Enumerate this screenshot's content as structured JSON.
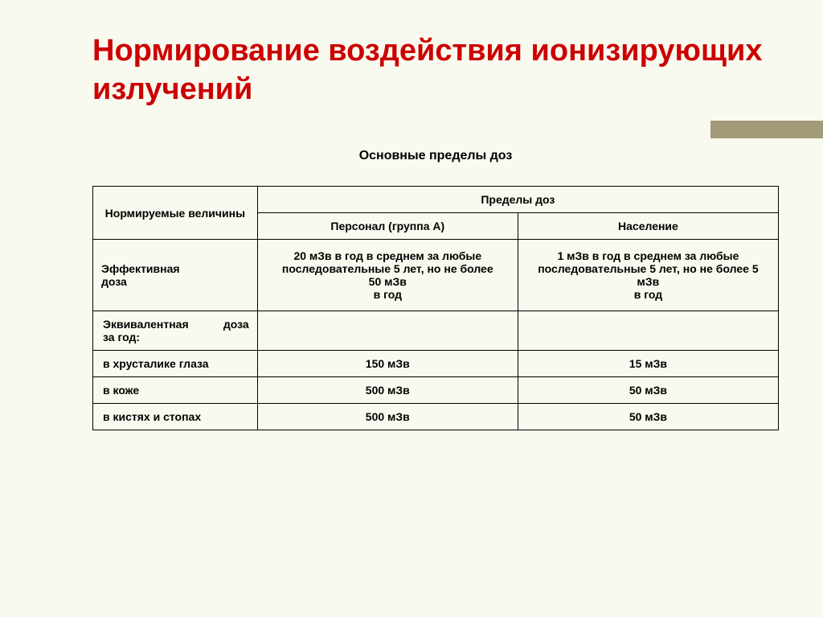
{
  "title": "Нормирование воздействия ионизирующих излучений",
  "subtitle": "Основные пределы доз",
  "table": {
    "header": {
      "col1": "Нормируемые величины",
      "col2span": "Пределы доз",
      "col2": "Персонал (группа А)",
      "col3": "Население"
    },
    "rows": {
      "effective": {
        "label_line1": "Эффективная",
        "label_line2": "доза",
        "personnel": "20 мЗв в год в среднем за любые последовательные 5 лет, но не более 50 мЗв\nв год",
        "population": "1 мЗв в год в среднем за любые последовательные 5 лет, но не более 5 мЗв\nв год"
      },
      "equivalent_header": {
        "label_left": "Эквивалентная",
        "label_right": "доза",
        "label_line2": "за год:"
      },
      "lens": {
        "label": "в хрусталике глаза",
        "personnel": "150 мЗв",
        "population": "15 мЗв"
      },
      "skin": {
        "label": "в коже",
        "personnel": "500 мЗв",
        "population": "50 мЗв"
      },
      "hands": {
        "label": "в кистях и стопах",
        "personnel": "500 мЗв",
        "population": "50 мЗв"
      }
    }
  },
  "colors": {
    "background": "#f9faef",
    "title": "#cc0000",
    "accent": "#a39a7a",
    "border": "#000000"
  }
}
